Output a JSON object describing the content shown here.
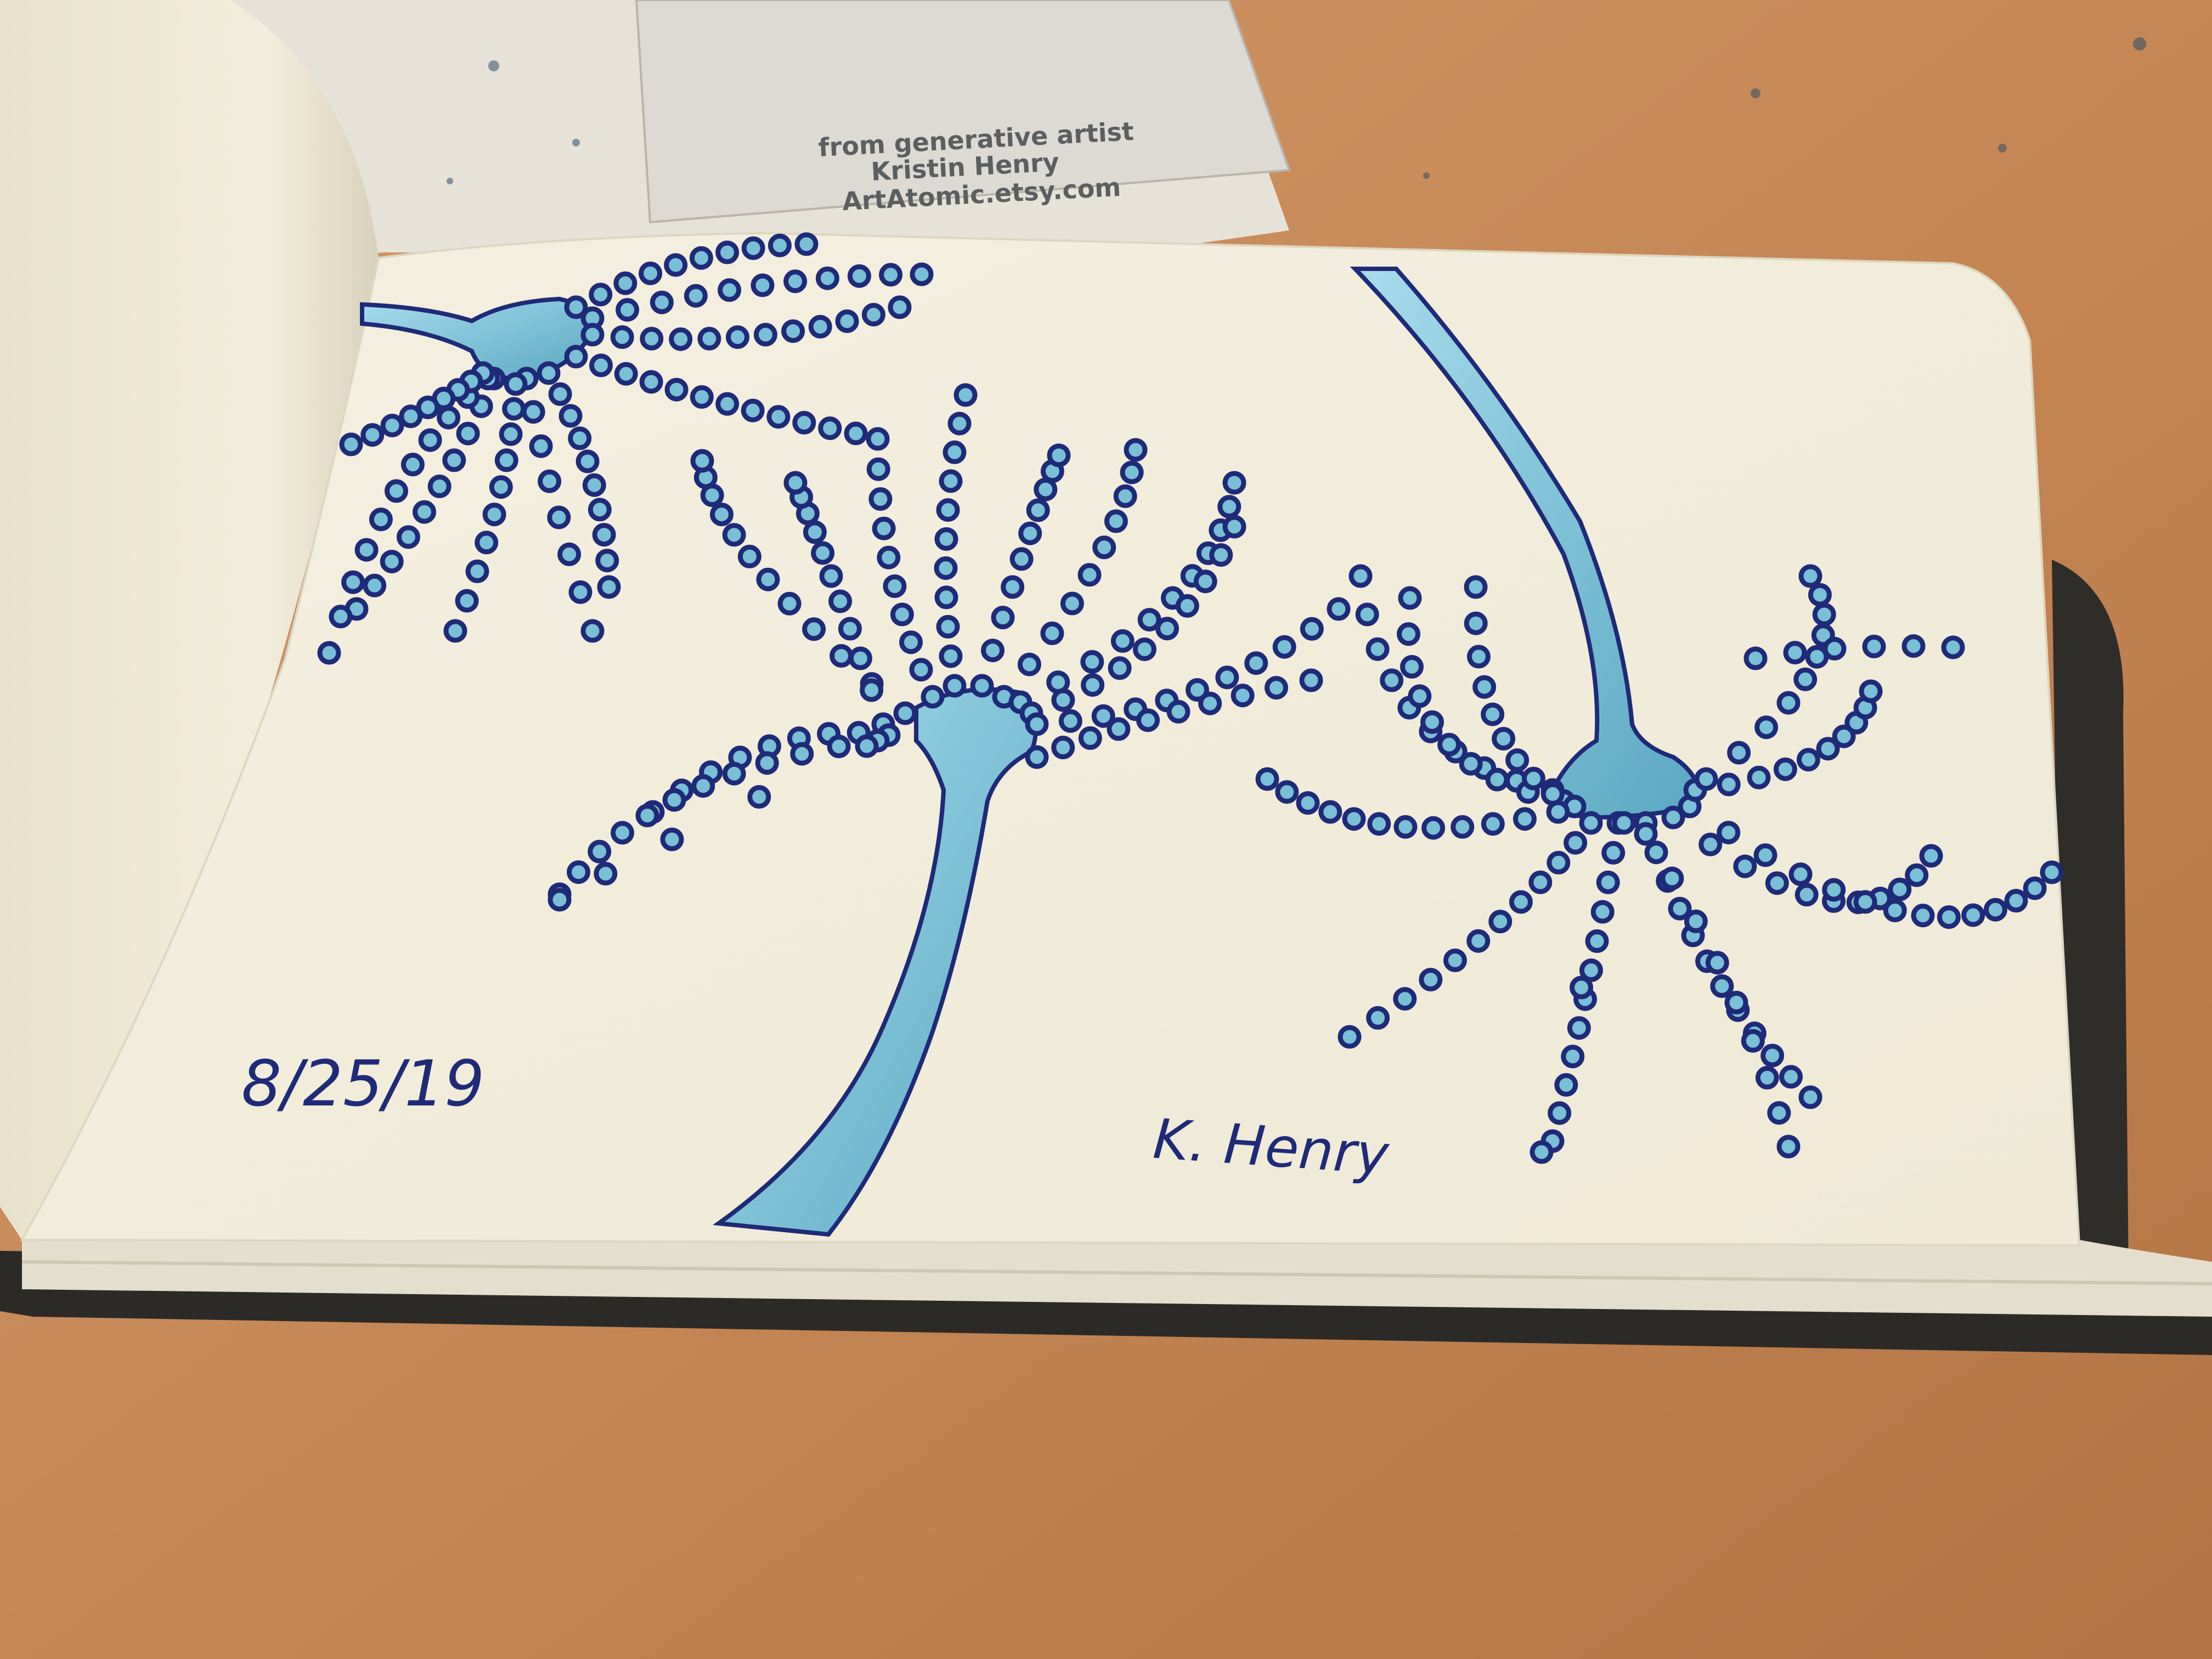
{
  "card": {
    "line1": "from generative artist",
    "line2": "Kristin Henry",
    "line3": "ArtAtomic.etsy.com"
  },
  "sketch": {
    "date": "8/25/19",
    "signature": "K. Henry"
  },
  "colors": {
    "table": "#c68a5c",
    "paper": "#f3eedd",
    "ink_dark": "#1f2a78",
    "ink_fill": "#6fb8cf",
    "dot_center": "#79bfd6",
    "book_cover": "#2c2a27"
  },
  "icons": [
    "neuron-drawing",
    "business-card",
    "sketchbook"
  ]
}
